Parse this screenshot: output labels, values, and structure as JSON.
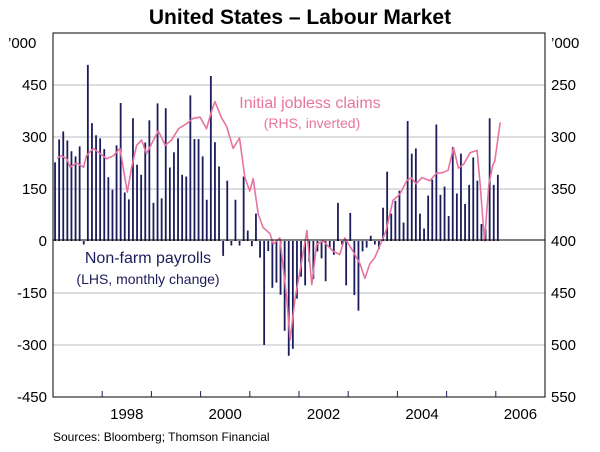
{
  "chart_data": {
    "type": "bar+line",
    "title": "United States – Labour Market",
    "source": "Sources: Bloomberg; Thomson Financial",
    "left_unit": "’000",
    "right_unit": "’000",
    "x_ticks": [
      "1998",
      "2000",
      "2002",
      "2004",
      "2006"
    ],
    "xlim": [
      1997,
      2007
    ],
    "left_axis": {
      "ylim": [
        -450,
        600
      ],
      "ticks": [
        "450",
        "300",
        "150",
        "0",
        "-150",
        "-300",
        "-450"
      ]
    },
    "right_axis": {
      "ylim": [
        200,
        550
      ],
      "inverted": true,
      "ticks": [
        "250",
        "300",
        "350",
        "400",
        "450",
        "500",
        "550"
      ]
    },
    "grid": true,
    "colors": {
      "payrolls": "#1c1c5c",
      "claims": "#e8739f",
      "grid": "#b8bcc4"
    },
    "series": [
      {
        "name": "Non-farm payrolls",
        "label_note": "(LHS, monthly change)",
        "type": "bar",
        "axis": "left",
        "start": "1997-01",
        "frequency": "monthly",
        "values": [
          227,
          293,
          316,
          290,
          259,
          244,
          273,
          -10,
          508,
          340,
          305,
          296,
          265,
          184,
          148,
          276,
          398,
          140,
          120,
          354,
          220,
          191,
          284,
          348,
          110,
          397,
          123,
          383,
          212,
          256,
          296,
          191,
          186,
          420,
          294,
          294,
          244,
          119,
          476,
          285,
          215,
          -43,
          174,
          -13,
          119,
          -13,
          186,
          30,
          -15,
          79,
          -48,
          -300,
          -29,
          -135,
          -120,
          -155,
          -259,
          -331,
          -311,
          -166,
          -103,
          -128,
          -60,
          -110,
          -30,
          -50,
          -116,
          -20,
          -40,
          110,
          -10,
          -128,
          81,
          -156,
          -201,
          -30,
          -19,
          15,
          -10,
          -23,
          96,
          200,
          79,
          116,
          145,
          53,
          346,
          252,
          267,
          79,
          36,
          131,
          177,
          336,
          133,
          157,
          72,
          271,
          137,
          252,
          107,
          162,
          241,
          174,
          49,
          35,
          354,
          162,
          191
        ]
      },
      {
        "name": "Initial jobless claims",
        "label_note": "(RHS, inverted)",
        "type": "line",
        "axis": "right",
        "points": [
          [
            1997.09,
            320
          ],
          [
            1997.17,
            318
          ],
          [
            1997.28,
            321
          ],
          [
            1997.35,
            329
          ],
          [
            1997.48,
            325
          ],
          [
            1997.62,
            329
          ],
          [
            1997.68,
            318
          ],
          [
            1997.82,
            311
          ],
          [
            1997.96,
            316
          ],
          [
            1998.09,
            321
          ],
          [
            1998.23,
            318
          ],
          [
            1998.36,
            311
          ],
          [
            1998.51,
            353
          ],
          [
            1998.6,
            329
          ],
          [
            1998.7,
            308
          ],
          [
            1998.8,
            303
          ],
          [
            1998.9,
            316
          ],
          [
            1999.01,
            306
          ],
          [
            1999.14,
            294
          ],
          [
            1999.28,
            308
          ],
          [
            1999.41,
            303
          ],
          [
            1999.55,
            292
          ],
          [
            1999.72,
            287
          ],
          [
            1999.85,
            282
          ],
          [
            1999.99,
            281
          ],
          [
            2000.12,
            292
          ],
          [
            2000.23,
            274
          ],
          [
            2000.29,
            266
          ],
          [
            2000.43,
            282
          ],
          [
            2000.53,
            290
          ],
          [
            2000.66,
            311
          ],
          [
            2000.79,
            301
          ],
          [
            2000.9,
            339
          ],
          [
            2001.0,
            352
          ],
          [
            2001.07,
            340
          ],
          [
            2001.17,
            374
          ],
          [
            2001.27,
            387
          ],
          [
            2001.41,
            393
          ],
          [
            2001.48,
            403
          ],
          [
            2001.61,
            397
          ],
          [
            2001.75,
            455
          ],
          [
            2001.82,
            495
          ],
          [
            2001.92,
            455
          ],
          [
            2002.02,
            429
          ],
          [
            2002.16,
            390
          ],
          [
            2002.26,
            442
          ],
          [
            2002.36,
            403
          ],
          [
            2002.49,
            400
          ],
          [
            2002.7,
            410
          ],
          [
            2002.83,
            413
          ],
          [
            2002.93,
            397
          ],
          [
            2003.1,
            410
          ],
          [
            2003.24,
            422
          ],
          [
            2003.34,
            436
          ],
          [
            2003.44,
            422
          ],
          [
            2003.54,
            416
          ],
          [
            2003.71,
            397
          ],
          [
            2003.77,
            390
          ],
          [
            2003.91,
            361
          ],
          [
            2004.05,
            355
          ],
          [
            2004.19,
            342
          ],
          [
            2004.28,
            339
          ],
          [
            2004.38,
            345
          ],
          [
            2004.5,
            339
          ],
          [
            2004.66,
            342
          ],
          [
            2004.79,
            335
          ],
          [
            2004.93,
            334
          ],
          [
            2005.03,
            332
          ],
          [
            2005.14,
            310
          ],
          [
            2005.24,
            330
          ],
          [
            2005.35,
            326
          ],
          [
            2005.48,
            315
          ],
          [
            2005.62,
            313
          ],
          [
            2005.68,
            345
          ],
          [
            2005.77,
            400
          ],
          [
            2005.86,
            345
          ],
          [
            2005.94,
            327
          ],
          [
            2005.98,
            323
          ],
          [
            2006.09,
            286
          ]
        ]
      }
    ]
  }
}
